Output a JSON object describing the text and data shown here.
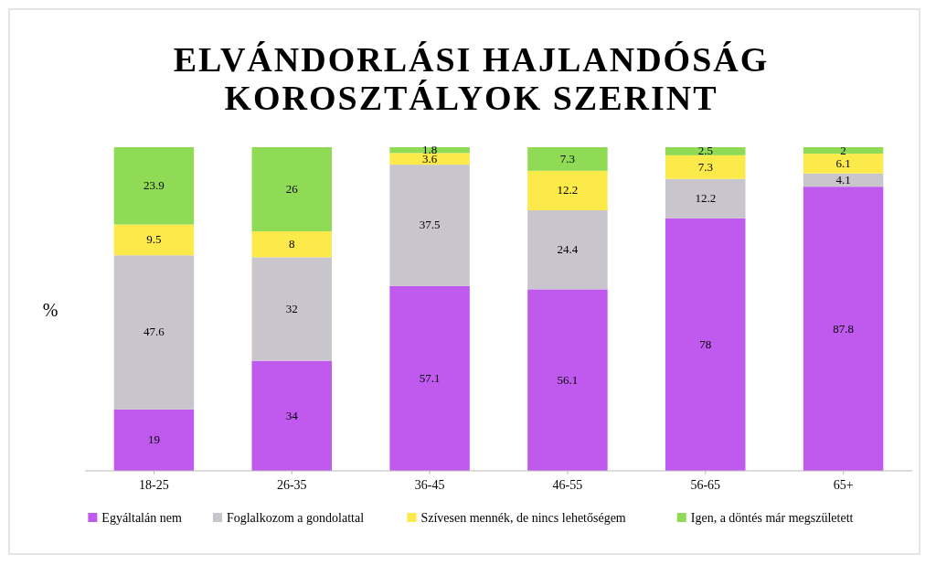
{
  "chart_data": {
    "type": "bar",
    "title": "ELVÁNDORLÁSI HAJLANDÓSÁG KOROSZTÁLYOK SZERINT",
    "ylabel": "%",
    "stacked": true,
    "data_labels": true,
    "legend": "bottom",
    "tick_labels": "x",
    "ylim": [
      0,
      100
    ],
    "categories": [
      "18-25",
      "26-35",
      "36-45",
      "46-55",
      "56-65",
      "65+"
    ],
    "series": [
      {
        "name": "Egyáltalán nem",
        "color": "#c059ee",
        "values": [
          19,
          34,
          57.1,
          56.1,
          78,
          87.8
        ]
      },
      {
        "name": "Foglalkozom a gondolattal",
        "color": "#c9c5cd",
        "values": [
          47.6,
          32,
          37.5,
          24.4,
          12.2,
          4.1
        ]
      },
      {
        "name": "Szívesen mennék, de nincs lehetőségem",
        "color": "#fce94a",
        "values": [
          9.5,
          8,
          3.6,
          12.2,
          7.3,
          6.1
        ]
      },
      {
        "name": "Igen, a döntés már megszületett",
        "color": "#8fdb55",
        "values": [
          23.9,
          26,
          1.8,
          7.3,
          2.5,
          2
        ]
      }
    ]
  }
}
